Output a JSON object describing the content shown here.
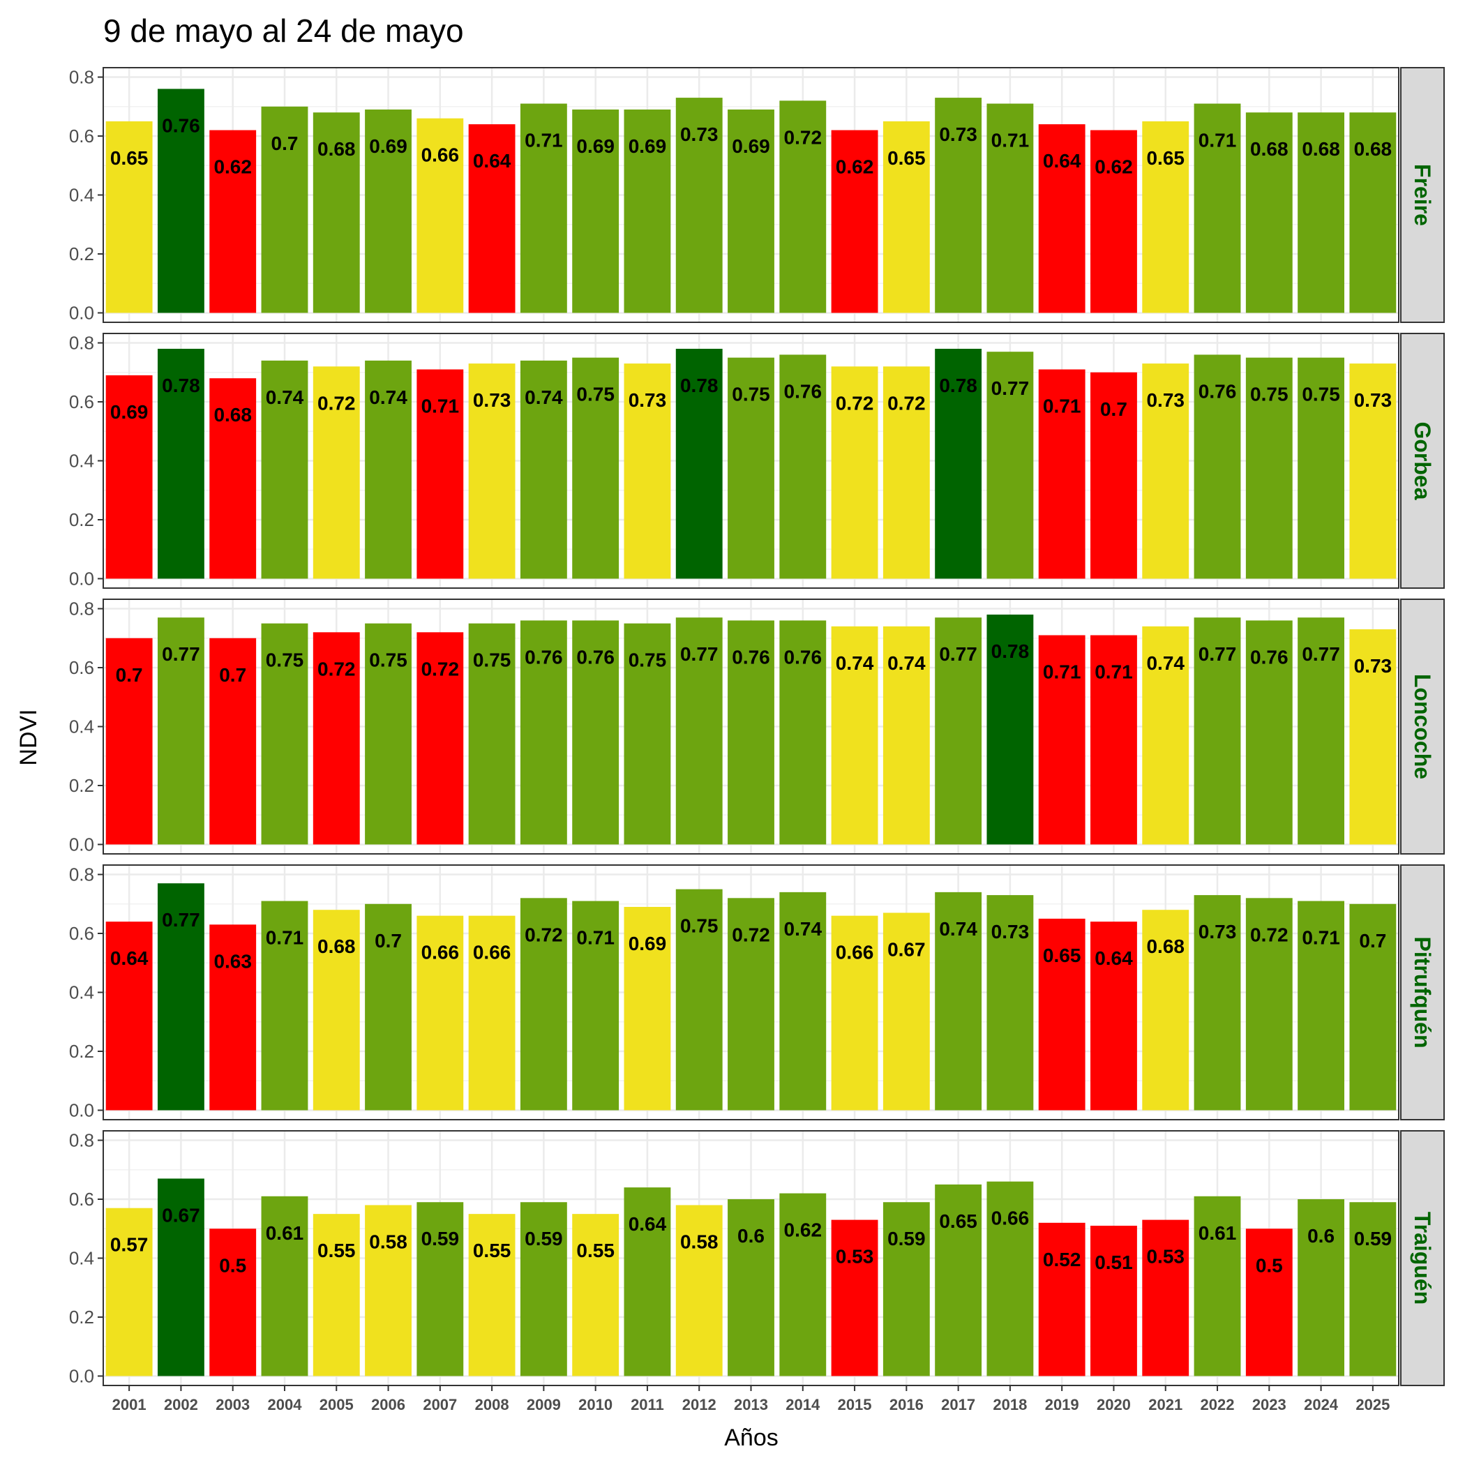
{
  "chart_data": {
    "type": "bar",
    "title": "9 de mayo al 24 de mayo",
    "xlabel": "Años",
    "ylabel": "NDVI",
    "ylim": [
      0,
      0.8
    ],
    "yticks": [
      "0.0",
      "0.2",
      "0.4",
      "0.6",
      "0.8"
    ],
    "grid": true,
    "categories": [
      "2001",
      "2002",
      "2003",
      "2004",
      "2005",
      "2006",
      "2007",
      "2008",
      "2009",
      "2010",
      "2011",
      "2012",
      "2013",
      "2014",
      "2015",
      "2016",
      "2017",
      "2018",
      "2019",
      "2020",
      "2021",
      "2022",
      "2023",
      "2024",
      "2025"
    ],
    "category_colors": {
      "red": "#ff0000",
      "yellow": "#f0e11e",
      "light_green": "#6da510",
      "dark_green": "#006400"
    },
    "strip_text_color": "#006400",
    "strip_fill": "#d9d9d9",
    "panels": [
      {
        "name": "Freire",
        "values": [
          0.65,
          0.76,
          0.62,
          0.7,
          0.68,
          0.69,
          0.66,
          0.64,
          0.71,
          0.69,
          0.69,
          0.73,
          0.69,
          0.72,
          0.62,
          0.65,
          0.73,
          0.71,
          0.64,
          0.62,
          0.65,
          0.71,
          0.68,
          0.68,
          0.68
        ],
        "labels": [
          "0.65",
          "0.76",
          "0.62",
          "0.7",
          "0.68",
          "0.69",
          "0.66",
          "0.64",
          "0.71",
          "0.69",
          "0.69",
          "0.73",
          "0.69",
          "0.72",
          "0.62",
          "0.65",
          "0.73",
          "0.71",
          "0.64",
          "0.62",
          "0.65",
          "0.71",
          "0.68",
          "0.68",
          "0.68"
        ],
        "colors": [
          "yellow",
          "dark_green",
          "red",
          "light_green",
          "light_green",
          "light_green",
          "yellow",
          "red",
          "light_green",
          "light_green",
          "light_green",
          "light_green",
          "light_green",
          "light_green",
          "red",
          "yellow",
          "light_green",
          "light_green",
          "red",
          "red",
          "yellow",
          "light_green",
          "light_green",
          "light_green",
          "light_green"
        ]
      },
      {
        "name": "Gorbea",
        "values": [
          0.69,
          0.78,
          0.68,
          0.74,
          0.72,
          0.74,
          0.71,
          0.73,
          0.74,
          0.75,
          0.73,
          0.78,
          0.75,
          0.76,
          0.72,
          0.72,
          0.78,
          0.77,
          0.71,
          0.7,
          0.73,
          0.76,
          0.75,
          0.75,
          0.73
        ],
        "labels": [
          "0.69",
          "0.78",
          "0.68",
          "0.74",
          "0.72",
          "0.74",
          "0.71",
          "0.73",
          "0.74",
          "0.75",
          "0.73",
          "0.78",
          "0.75",
          "0.76",
          "0.72",
          "0.72",
          "0.78",
          "0.77",
          "0.71",
          "0.7",
          "0.73",
          "0.76",
          "0.75",
          "0.75",
          "0.73"
        ],
        "colors": [
          "red",
          "dark_green",
          "red",
          "light_green",
          "yellow",
          "light_green",
          "red",
          "yellow",
          "light_green",
          "light_green",
          "yellow",
          "dark_green",
          "light_green",
          "light_green",
          "yellow",
          "yellow",
          "dark_green",
          "light_green",
          "red",
          "red",
          "yellow",
          "light_green",
          "light_green",
          "light_green",
          "yellow"
        ]
      },
      {
        "name": "Loncoche",
        "values": [
          0.7,
          0.77,
          0.7,
          0.75,
          0.72,
          0.75,
          0.72,
          0.75,
          0.76,
          0.76,
          0.75,
          0.77,
          0.76,
          0.76,
          0.74,
          0.74,
          0.77,
          0.78,
          0.71,
          0.71,
          0.74,
          0.77,
          0.76,
          0.77,
          0.73
        ],
        "labels": [
          "0.7",
          "0.77",
          "0.7",
          "0.75",
          "0.72",
          "0.75",
          "0.72",
          "0.75",
          "0.76",
          "0.76",
          "0.75",
          "0.77",
          "0.76",
          "0.76",
          "0.74",
          "0.74",
          "0.77",
          "0.78",
          "0.71",
          "0.71",
          "0.74",
          "0.77",
          "0.76",
          "0.77",
          "0.73"
        ],
        "colors": [
          "red",
          "light_green",
          "red",
          "light_green",
          "red",
          "light_green",
          "red",
          "light_green",
          "light_green",
          "light_green",
          "light_green",
          "light_green",
          "light_green",
          "light_green",
          "yellow",
          "yellow",
          "light_green",
          "dark_green",
          "red",
          "red",
          "yellow",
          "light_green",
          "light_green",
          "light_green",
          "yellow"
        ]
      },
      {
        "name": "Pitrufquén",
        "values": [
          0.64,
          0.77,
          0.63,
          0.71,
          0.68,
          0.7,
          0.66,
          0.66,
          0.72,
          0.71,
          0.69,
          0.75,
          0.72,
          0.74,
          0.66,
          0.67,
          0.74,
          0.73,
          0.65,
          0.64,
          0.68,
          0.73,
          0.72,
          0.71,
          0.7
        ],
        "labels": [
          "0.64",
          "0.77",
          "0.63",
          "0.71",
          "0.68",
          "0.7",
          "0.66",
          "0.66",
          "0.72",
          "0.71",
          "0.69",
          "0.75",
          "0.72",
          "0.74",
          "0.66",
          "0.67",
          "0.74",
          "0.73",
          "0.65",
          "0.64",
          "0.68",
          "0.73",
          "0.72",
          "0.71",
          "0.7"
        ],
        "colors": [
          "red",
          "dark_green",
          "red",
          "light_green",
          "yellow",
          "light_green",
          "yellow",
          "yellow",
          "light_green",
          "light_green",
          "yellow",
          "light_green",
          "light_green",
          "light_green",
          "yellow",
          "yellow",
          "light_green",
          "light_green",
          "red",
          "red",
          "yellow",
          "light_green",
          "light_green",
          "light_green",
          "light_green"
        ]
      },
      {
        "name": "Traiguén",
        "values": [
          0.57,
          0.67,
          0.5,
          0.61,
          0.55,
          0.58,
          0.59,
          0.55,
          0.59,
          0.55,
          0.64,
          0.58,
          0.6,
          0.62,
          0.53,
          0.59,
          0.65,
          0.66,
          0.52,
          0.51,
          0.53,
          0.61,
          0.5,
          0.6,
          0.59
        ],
        "labels": [
          "0.57",
          "0.67",
          "0.5",
          "0.61",
          "0.55",
          "0.58",
          "0.59",
          "0.55",
          "0.59",
          "0.55",
          "0.64",
          "0.58",
          "0.6",
          "0.62",
          "0.53",
          "0.59",
          "0.65",
          "0.66",
          "0.52",
          "0.51",
          "0.53",
          "0.61",
          "0.5",
          "0.6",
          "0.59"
        ],
        "colors": [
          "yellow",
          "dark_green",
          "red",
          "light_green",
          "yellow",
          "yellow",
          "light_green",
          "yellow",
          "light_green",
          "yellow",
          "light_green",
          "yellow",
          "light_green",
          "light_green",
          "red",
          "light_green",
          "light_green",
          "light_green",
          "red",
          "red",
          "red",
          "light_green",
          "red",
          "light_green",
          "light_green"
        ]
      }
    ]
  }
}
